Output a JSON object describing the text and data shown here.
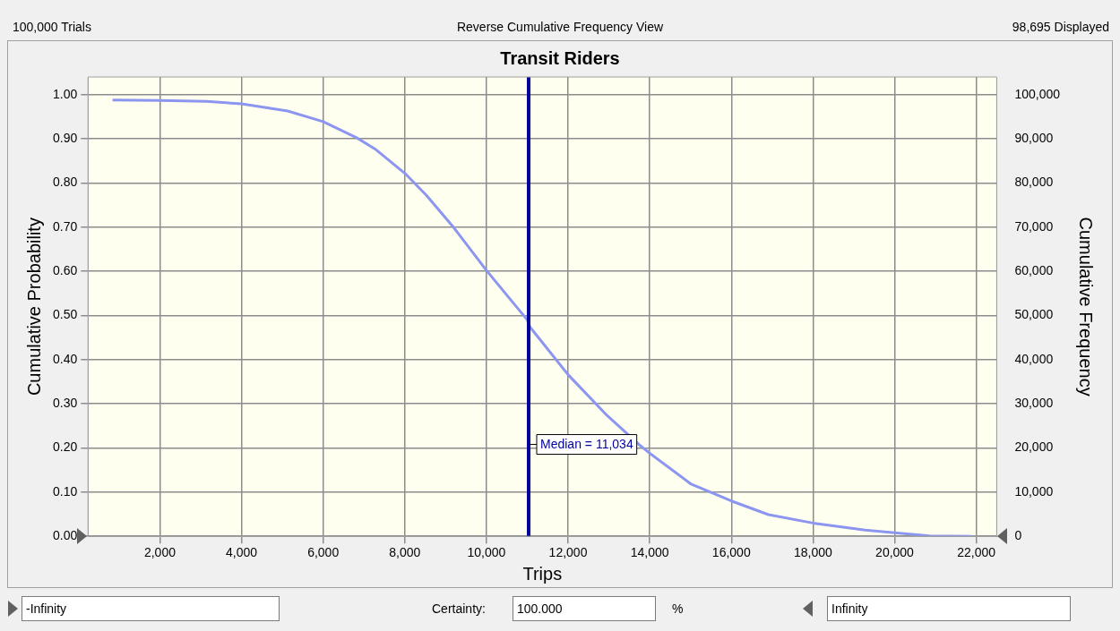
{
  "chart_data": {
    "type": "line",
    "title": "Transit Riders",
    "xlabel": "Trips",
    "ylabel": "Cumulative Probability",
    "y2label": "Cumulative Frequency",
    "annotations": [
      "100,000 Trials",
      "Reverse Cumulative Frequency View",
      "98,695 Displayed",
      "-Infinity",
      "Certainty:",
      "100.000",
      "%",
      "Infinity"
    ],
    "series": [
      {
        "color": "#8c96f0",
        "x": [
          840,
          2000,
          3140,
          4000,
          5130,
          6000,
          6830,
          7270,
          8000,
          8530,
          9190,
          10000,
          11000,
          11065,
          12000,
          12960,
          13750,
          14000,
          15015,
          16000,
          16910,
          18000,
          19280,
          20000,
          20855,
          21890
        ],
        "values": [
          0.988,
          0.987,
          0.985,
          0.979,
          0.963,
          0.939,
          0.902,
          0.877,
          0.822,
          0.772,
          0.7,
          0.602,
          0.49,
          0.474,
          0.366,
          0.273,
          0.207,
          0.188,
          0.118,
          0.08,
          0.049,
          0.03,
          0.014,
          0.008,
          0.001,
          0
        ]
      }
    ],
    "xlim": [
      240,
      22500
    ],
    "ylim": [
      0,
      1.04
    ],
    "y2lim": [
      0,
      104000
    ],
    "xticks": [
      {
        "value": 2000,
        "label": "2,000"
      },
      {
        "value": 4000,
        "label": "4,000"
      },
      {
        "value": 6000,
        "label": "6,000"
      },
      {
        "value": 8000,
        "label": "8,000"
      },
      {
        "value": 10000,
        "label": "10,000"
      },
      {
        "value": 12000,
        "label": "12,000"
      },
      {
        "value": 14000,
        "label": "14,000"
      },
      {
        "value": 16000,
        "label": "16,000"
      },
      {
        "value": 18000,
        "label": "18,000"
      },
      {
        "value": 20000,
        "label": "20,000"
      },
      {
        "value": 22000,
        "label": "22,000"
      }
    ],
    "yticks": [
      {
        "value": 0,
        "label": "0.00"
      },
      {
        "value": 0.1,
        "label": "0.10"
      },
      {
        "value": 0.2,
        "label": "0.20"
      },
      {
        "value": 0.3,
        "label": "0.30"
      },
      {
        "value": 0.4,
        "label": "0.40"
      },
      {
        "value": 0.5,
        "label": "0.50"
      },
      {
        "value": 0.6,
        "label": "0.60"
      },
      {
        "value": 0.7,
        "label": "0.70"
      },
      {
        "value": 0.8,
        "label": "0.80"
      },
      {
        "value": 0.9,
        "label": "0.90"
      },
      {
        "value": 1,
        "label": "1.00"
      }
    ],
    "y2ticks": [
      0,
      {
        "value": 10000,
        "label": "10,000"
      },
      {
        "value": 20000,
        "label": "20,000"
      },
      {
        "value": 30000,
        "label": "30,000"
      },
      {
        "value": 40000,
        "label": "40,000"
      },
      {
        "value": 50000,
        "label": "50,000"
      },
      {
        "value": 60000,
        "label": "60,000"
      },
      {
        "value": 70000,
        "label": "70,000"
      },
      {
        "value": 80000,
        "label": "80,000"
      },
      {
        "value": 90000,
        "label": "90,000"
      },
      {
        "value": 100000,
        "label": "100,000"
      }
    ],
    "ref_lines": [
      {
        "axis": "x",
        "value": 11034,
        "label": "Median = 11,034",
        "color": "#00009c"
      }
    ],
    "grid": true,
    "legend": false,
    "marker": "none",
    "line_style": "solid"
  }
}
